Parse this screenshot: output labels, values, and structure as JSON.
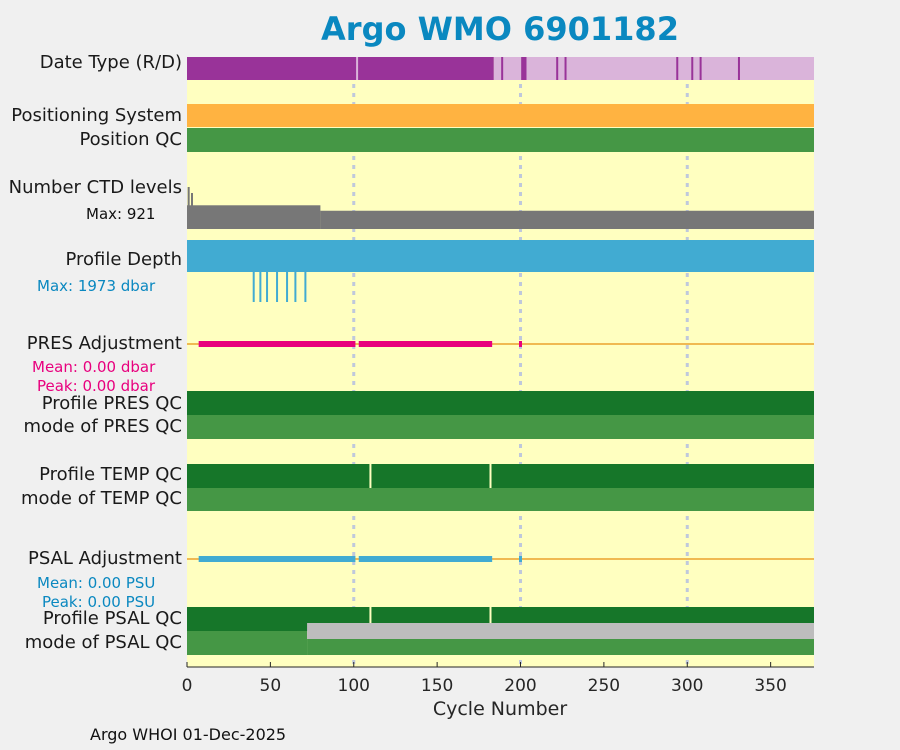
{
  "title": "Argo WMO 6901182",
  "row_labels": {
    "date_type": "Date Type (R/D)",
    "positioning_system": "Positioning System",
    "position_qc": "Position QC",
    "ctd_levels": "Number CTD levels",
    "profile_depth": "Profile Depth",
    "pres_adjustment": "PRES Adjustment",
    "profile_pres_qc": "Profile PRES QC",
    "mode_pres_qc": "mode of PRES QC",
    "profile_temp_qc": "Profile TEMP QC",
    "mode_temp_qc": "mode of TEMP QC",
    "psal_adjustment": "PSAL Adjustment",
    "profile_psal_qc": "Profile PSAL QC",
    "mode_psal_qc": "mode of PSAL QC"
  },
  "sub_labels": {
    "ctd_max": "Max: 921",
    "depth_max": "Max: 1973 dbar",
    "pres_mean": "Mean: 0.00 dbar",
    "pres_peak": "Peak: 0.00 dbar",
    "psal_mean": "Mean: 0.00 PSU",
    "psal_peak": "Peak: 0.00 PSU"
  },
  "colors": {
    "background": "#ffffc0",
    "realtime": "#993399",
    "delayed": "#dab4da",
    "positioning": "#ffb341",
    "qc_good": "#459745",
    "qc_profile_a": "#167629",
    "qc_missing": "#bdbdbd",
    "ctd": "#777777",
    "depth": "#41abd2",
    "pres": "#e8007e",
    "psal": "#41abd2",
    "zero_line": "#f0b952",
    "grid": "#bfc8dc",
    "pres_label": "#e8007e",
    "psal_label": "#0a88c0",
    "depth_label": "#0a88c0"
  },
  "chart_data": {
    "type": "timeline",
    "xlabel": "Cycle Number",
    "xlim": [
      0,
      376
    ],
    "xticks": [
      0,
      50,
      100,
      150,
      200,
      250,
      300,
      350
    ],
    "gridlines_x": [
      100,
      200,
      300
    ],
    "date_type": {
      "realtime_span": [
        0,
        184
      ],
      "delayed_span": [
        184,
        376
      ],
      "realtime_cycles_in_delayed": [
        189,
        201,
        202,
        203,
        222,
        227,
        294,
        303,
        308,
        331
      ],
      "gap_cycles": [
        102
      ]
    },
    "positioning_system": {
      "span": [
        0,
        376
      ]
    },
    "position_qc": {
      "span": [
        0,
        376
      ]
    },
    "ctd_levels": {
      "max": 921,
      "segments": [
        {
          "from": 0,
          "to": 80,
          "value": 130
        },
        {
          "from": 80,
          "to": 376,
          "value": 100
        }
      ]
    },
    "profile_depth": {
      "max": 1973,
      "base": 1000,
      "shallow_profiles": [
        {
          "cycle": 40,
          "depth": 1500
        },
        {
          "cycle": 44,
          "depth": 1500
        },
        {
          "cycle": 48,
          "depth": 1500
        },
        {
          "cycle": 54,
          "depth": 1500
        },
        {
          "cycle": 60,
          "depth": 1500
        },
        {
          "cycle": 65,
          "depth": 1500
        },
        {
          "cycle": 71,
          "depth": 1500
        }
      ]
    },
    "pres_adjustment": {
      "mean": 0.0,
      "peak": 0.0,
      "adjusted_spans": [
        [
          7,
          101
        ],
        [
          103,
          183
        ]
      ],
      "adjusted_points": [
        200
      ]
    },
    "profile_pres_qc": {
      "span": [
        0,
        376
      ]
    },
    "mode_pres_qc": {
      "span": [
        0,
        376
      ]
    },
    "profile_temp_qc": {
      "span": [
        0,
        376
      ],
      "gap_cycles": [
        110,
        182
      ]
    },
    "mode_temp_qc": {
      "span": [
        0,
        376
      ]
    },
    "psal_adjustment": {
      "mean": 0.0,
      "peak": 0.0,
      "adjusted_spans": [
        [
          7,
          101
        ],
        [
          103,
          183
        ]
      ],
      "adjusted_points": [
        200
      ]
    },
    "profile_psal_qc": {
      "span": [
        0,
        376
      ],
      "gap_cycles": [
        110,
        182
      ]
    },
    "mode_psal_qc": {
      "good_span": [
        0,
        72
      ],
      "missing_span": [
        72,
        376
      ]
    }
  },
  "footer": "Argo WHOI 01-Dec-2025"
}
